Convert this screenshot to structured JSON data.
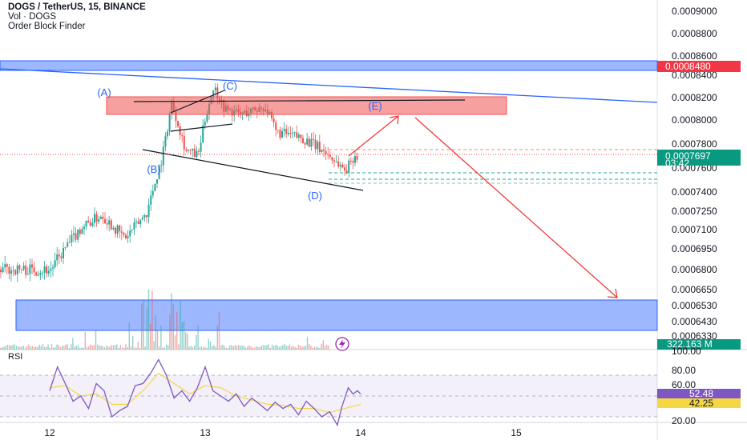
{
  "header": {
    "title": "DOGS / TetherUS, 15, BINANCE",
    "volume_indicator": "Vol · DOGS",
    "order_block_indicator": "Order Block Finder"
  },
  "rsi_panel": {
    "label": "RSI"
  },
  "colors": {
    "candle_up": "#26a69a",
    "candle_down": "#ef5350",
    "trendline": "#2962ff",
    "supply_zone": "#ef5350",
    "demand_zone": "#2962ff",
    "arrow": "#ef3b3b",
    "rsi_line": "#7e57c2",
    "rsi_ma": "#f5d743"
  },
  "chart_data": [
    {
      "type": "candlestick",
      "title": "DOGS / TetherUS, 15, BINANCE",
      "x_axis": {
        "ticks": [
          "12",
          "13",
          "14",
          "15"
        ]
      },
      "y_axis": {
        "scale": "price",
        "ticks": [
          "0.0009000",
          "0.0008800",
          "0.0008600",
          "0.0008400",
          "0.0008200",
          "0.0008000",
          "0.0007800",
          "0.0007600",
          "0.0007400",
          "0.0007250",
          "0.0007100",
          "0.0006950",
          "0.0006800",
          "0.0006650",
          "0.0006530",
          "0.0006430",
          "0.0006330"
        ]
      },
      "price_path": [
        {
          "x": 12.0,
          "y": 0.00068
        },
        {
          "x": 12.2,
          "y": 0.000712
        },
        {
          "x": 12.33,
          "y": 0.000722
        },
        {
          "x": 12.48,
          "y": 0.000703
        },
        {
          "x": 12.62,
          "y": 0.000724
        },
        {
          "x": 12.72,
          "y": 0.00077
        },
        {
          "x": 12.78,
          "y": 0.000815
        },
        {
          "x": 12.87,
          "y": 0.000775
        },
        {
          "x": 12.95,
          "y": 0.00077
        },
        {
          "x": 13.0,
          "y": 0.000805
        },
        {
          "x": 13.05,
          "y": 0.00083
        },
        {
          "x": 13.12,
          "y": 0.00081
        },
        {
          "x": 13.22,
          "y": 0.000805
        },
        {
          "x": 13.38,
          "y": 0.000812
        },
        {
          "x": 13.45,
          "y": 0.00079
        },
        {
          "x": 13.62,
          "y": 0.000785
        },
        {
          "x": 13.75,
          "y": 0.000775
        },
        {
          "x": 13.9,
          "y": 0.000758
        },
        {
          "x": 13.95,
          "y": 0.00077
        },
        {
          "x": 14.0,
          "y": 0.000772
        }
      ],
      "badges": {
        "zone_top_price": "0.0008480",
        "current_price": "0.0007697",
        "countdown": "03:42",
        "volume": "322.163 M"
      },
      "annotations": {
        "wave_labels": [
          "(A)",
          "(B)",
          "(C)",
          "(D)",
          "(E)"
        ]
      }
    },
    {
      "type": "line",
      "title": "RSI",
      "y_axis": {
        "ticks": [
          "100.00",
          "80.00",
          "60.00",
          "20.00"
        ]
      },
      "badges": {
        "rsi": "52.48",
        "rsi_ma": "42.25"
      },
      "series": [
        {
          "values": [
            {
              "x": 12.0,
              "y": 55
            },
            {
              "x": 12.05,
              "y": 78
            },
            {
              "x": 12.1,
              "y": 62
            },
            {
              "x": 12.15,
              "y": 45
            },
            {
              "x": 12.2,
              "y": 50
            },
            {
              "x": 12.25,
              "y": 38
            },
            {
              "x": 12.3,
              "y": 62
            },
            {
              "x": 12.35,
              "y": 55
            },
            {
              "x": 12.4,
              "y": 30
            },
            {
              "x": 12.45,
              "y": 36
            },
            {
              "x": 12.5,
              "y": 40
            },
            {
              "x": 12.55,
              "y": 60
            },
            {
              "x": 12.6,
              "y": 62
            },
            {
              "x": 12.65,
              "y": 72
            },
            {
              "x": 12.7,
              "y": 85
            },
            {
              "x": 12.75,
              "y": 70
            },
            {
              "x": 12.8,
              "y": 48
            },
            {
              "x": 12.85,
              "y": 55
            },
            {
              "x": 12.9,
              "y": 45
            },
            {
              "x": 12.95,
              "y": 58
            },
            {
              "x": 13.0,
              "y": 78
            },
            {
              "x": 13.05,
              "y": 55
            },
            {
              "x": 13.1,
              "y": 50
            },
            {
              "x": 13.15,
              "y": 45
            },
            {
              "x": 13.2,
              "y": 52
            },
            {
              "x": 13.25,
              "y": 40
            },
            {
              "x": 13.3,
              "y": 48
            },
            {
              "x": 13.35,
              "y": 42
            },
            {
              "x": 13.4,
              "y": 36
            },
            {
              "x": 13.45,
              "y": 44
            },
            {
              "x": 13.5,
              "y": 38
            },
            {
              "x": 13.55,
              "y": 42
            },
            {
              "x": 13.6,
              "y": 32
            },
            {
              "x": 13.65,
              "y": 45
            },
            {
              "x": 13.7,
              "y": 38
            },
            {
              "x": 13.75,
              "y": 30
            },
            {
              "x": 13.8,
              "y": 35
            },
            {
              "x": 13.85,
              "y": 22
            },
            {
              "x": 13.88,
              "y": 40
            },
            {
              "x": 13.92,
              "y": 58
            },
            {
              "x": 13.95,
              "y": 52
            },
            {
              "x": 13.98,
              "y": 55
            },
            {
              "x": 14.0,
              "y": 52
            }
          ]
        },
        {
          "values": [
            {
              "x": 12.0,
              "y": 58
            },
            {
              "x": 12.1,
              "y": 60
            },
            {
              "x": 12.2,
              "y": 50
            },
            {
              "x": 12.3,
              "y": 52
            },
            {
              "x": 12.4,
              "y": 42
            },
            {
              "x": 12.5,
              "y": 42
            },
            {
              "x": 12.6,
              "y": 55
            },
            {
              "x": 12.7,
              "y": 72
            },
            {
              "x": 12.8,
              "y": 62
            },
            {
              "x": 12.9,
              "y": 52
            },
            {
              "x": 13.0,
              "y": 60
            },
            {
              "x": 13.1,
              "y": 58
            },
            {
              "x": 13.2,
              "y": 50
            },
            {
              "x": 13.3,
              "y": 46
            },
            {
              "x": 13.4,
              "y": 42
            },
            {
              "x": 13.5,
              "y": 41
            },
            {
              "x": 13.6,
              "y": 38
            },
            {
              "x": 13.7,
              "y": 38
            },
            {
              "x": 13.8,
              "y": 34
            },
            {
              "x": 13.9,
              "y": 38
            },
            {
              "x": 14.0,
              "y": 42
            }
          ]
        }
      ]
    }
  ]
}
